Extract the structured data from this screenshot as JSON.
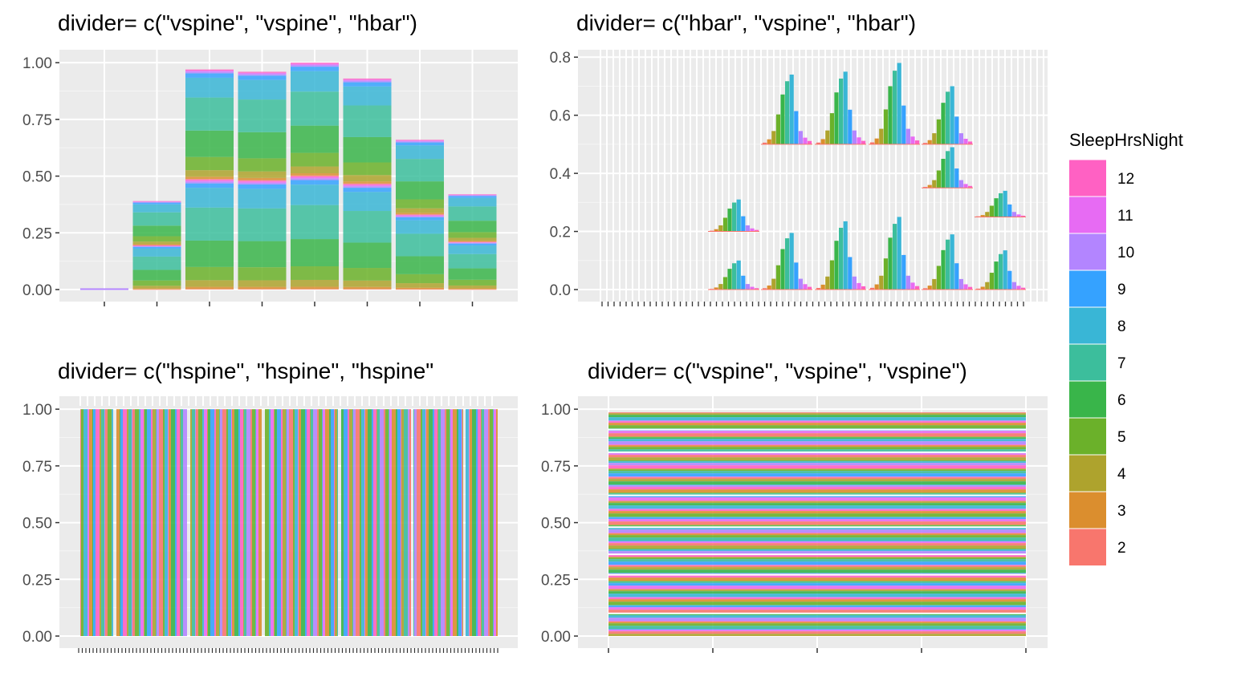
{
  "chart_data": {
    "type": "bar",
    "legend": {
      "title": "SleepHrsNight",
      "placement": "right",
      "levels": [
        "12",
        "11",
        "10",
        "9",
        "8",
        "7",
        "6",
        "5",
        "4",
        "3",
        "2"
      ],
      "colors": [
        "#FF61C3",
        "#E76BF3",
        "#B385FF",
        "#35A2FF",
        "#39B6D6",
        "#3CBE9C",
        "#39B54A",
        "#6BB12A",
        "#AEA32D",
        "#DB8E2E",
        "#F8766D"
      ]
    },
    "grid": true,
    "panels": [
      {
        "title": "divider= c(\"vspine\", \"vspine\", \"hbar\")",
        "ylim": [
          0,
          1.05
        ],
        "yticks": [
          0,
          0.25,
          0.5,
          0.75,
          1
        ],
        "ytick_labels": [
          "0.00",
          "0.25",
          "0.50",
          "0.75",
          "1.00"
        ],
        "groups": [
          {
            "total": 0.0
          },
          {
            "total": 0.39
          },
          {
            "total": 0.97
          },
          {
            "total": 0.96
          },
          {
            "total": 1.0
          },
          {
            "total": 0.93
          },
          {
            "total": 0.66
          },
          {
            "total": 0.42
          }
        ]
      },
      {
        "title": "divider= c(\"hbar\", \"vspine\", \"hbar\")",
        "ylim": [
          0,
          0.82
        ],
        "yticks": [
          0,
          0.2,
          0.4,
          0.6,
          0.8
        ],
        "ytick_labels": [
          "0.0",
          "0.2",
          "0.4",
          "0.6",
          "0.8"
        ],
        "rows": [
          {
            "base": 0.0,
            "peaks": [
              0.0,
              0.1,
              0.195,
              0.235,
              0.25,
              0.19,
              0.135
            ]
          },
          {
            "base": 0.2,
            "peaks": [
              0.0,
              0.31,
              0.0,
              0.0,
              0.0,
              0.0,
              0.0
            ]
          },
          {
            "base": 0.5,
            "peaks": [
              0.0,
              0.0,
              0.74,
              0.75,
              0.78,
              0.7,
              0.0
            ]
          },
          {
            "base": 0.35,
            "peaks": [
              0.0,
              0.0,
              0.0,
              0.0,
              0.0,
              0.0,
              0.0
            ]
          },
          {
            "base": 0.45,
            "peaks": [
              0.0,
              0.0,
              0.0,
              0.0,
              0.0,
              0.0,
              0.0
            ]
          },
          {
            "base": 0.35,
            "peaks": [
              0.0,
              0.0,
              0.0,
              0.0,
              0.0,
              0.49,
              0.0
            ]
          },
          {
            "base": 0.25,
            "peaks": [
              0.0,
              0.0,
              0.0,
              0.0,
              0.0,
              0.0,
              0.34
            ]
          }
        ]
      },
      {
        "title": "divider= c(\"hspine\", \"hspine\", \"hspine\"",
        "ylim": [
          0,
          1.05
        ],
        "yticks": [
          0,
          0.25,
          0.5,
          0.75,
          1
        ],
        "ytick_labels": [
          "0.00",
          "0.25",
          "0.50",
          "0.75",
          "1.00"
        ]
      },
      {
        "title": "divider= c(\"vspine\", \"vspine\", \"vspine\")",
        "ylim": [
          0,
          1.05
        ],
        "yticks": [
          0,
          0.25,
          0.5,
          0.75,
          1
        ],
        "ytick_labels": [
          "0.00",
          "0.25",
          "0.50",
          "0.75",
          "1.00"
        ]
      }
    ]
  }
}
